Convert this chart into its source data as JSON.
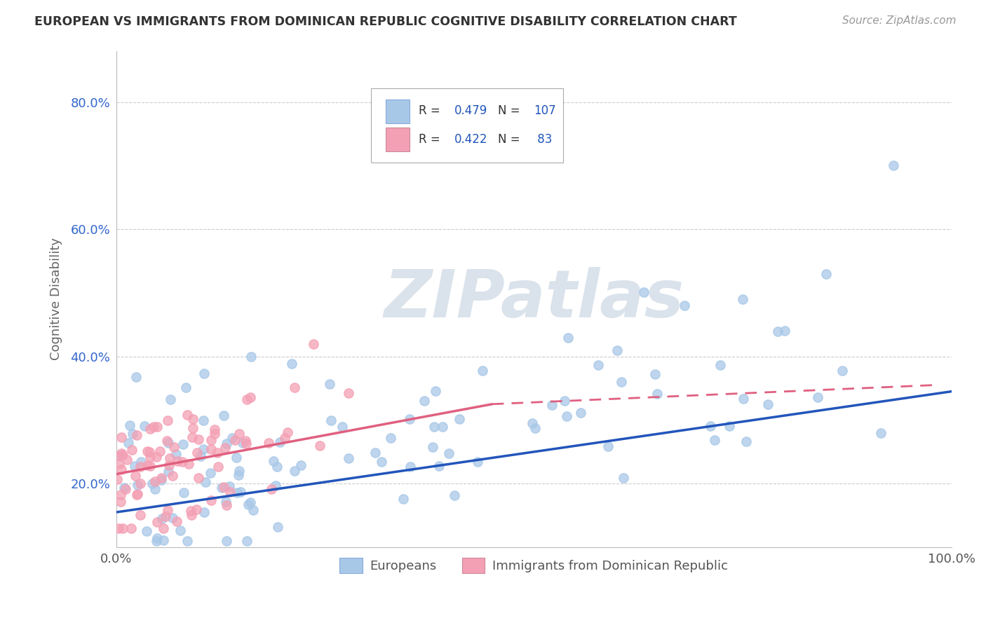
{
  "title": "EUROPEAN VS IMMIGRANTS FROM DOMINICAN REPUBLIC COGNITIVE DISABILITY CORRELATION CHART",
  "source": "Source: ZipAtlas.com",
  "ylabel": "Cognitive Disability",
  "xlim": [
    0,
    1.0
  ],
  "ylim": [
    0.1,
    0.88
  ],
  "yticks": [
    0.2,
    0.4,
    0.6,
    0.8
  ],
  "ytick_labels": [
    "20.0%",
    "40.0%",
    "60.0%",
    "80.0%"
  ],
  "xtick_labels": [
    "0.0%",
    "100.0%"
  ],
  "blue_R": 0.479,
  "blue_N": 107,
  "pink_R": 0.422,
  "pink_N": 83,
  "blue_color": "#a8c8e8",
  "pink_color": "#f4a0b4",
  "blue_line_color": "#2255bb",
  "pink_line_color": "#e06080",
  "watermark_color": "#d4dde8",
  "legend_label_blue": "Europeans",
  "legend_label_pink": "Immigrants from Dominican Republic",
  "background_color": "#ffffff",
  "grid_color": "#cccccc",
  "title_color": "#333333",
  "source_color": "#999999",
  "tick_color": "#3366cc"
}
